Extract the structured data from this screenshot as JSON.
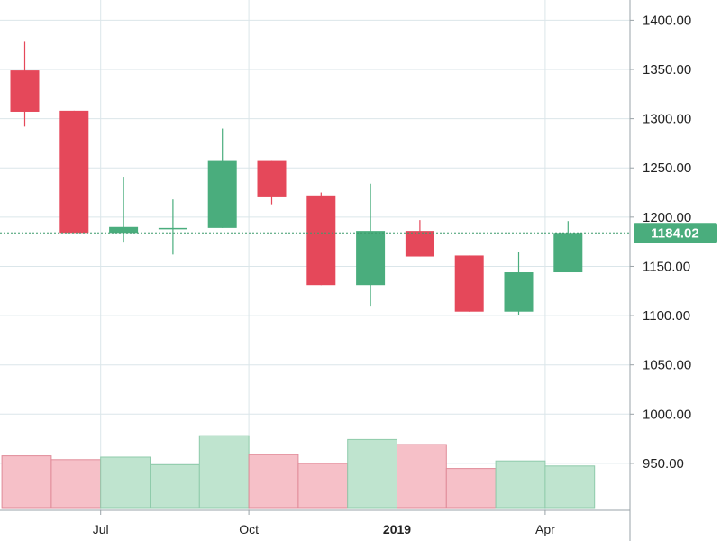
{
  "chart_data": {
    "type": "candlestick",
    "title": "",
    "xlabel": "",
    "ylabel": "",
    "ylim": [
      880,
      1420
    ],
    "grid": true,
    "y_ticks": [
      "950.00",
      "1000.00",
      "1050.00",
      "1100.00",
      "1150.00",
      "1200.00",
      "1250.00",
      "1300.00",
      "1350.00",
      "1400.00"
    ],
    "x_ticks": [
      {
        "label": "Jul",
        "period": "2018-07",
        "bold": false
      },
      {
        "label": "Oct",
        "period": "2018-10",
        "bold": false
      },
      {
        "label": "2019",
        "period": "2019-01",
        "bold": true
      },
      {
        "label": "Apr",
        "period": "2019-04",
        "bold": false
      }
    ],
    "last_price": {
      "value": 1184.02,
      "label": "1184.02"
    },
    "candles": [
      {
        "period": "2018-05",
        "open": 1349,
        "high": 1378,
        "low": 1292,
        "close": 1307,
        "volume": 0.41
      },
      {
        "period": "2018-06",
        "open": 1308,
        "high": 1308,
        "low": 1184,
        "close": 1184,
        "volume": 0.38
      },
      {
        "period": "2018-07",
        "open": 1184,
        "high": 1241,
        "low": 1175,
        "close": 1190,
        "volume": 0.4
      },
      {
        "period": "2018-08",
        "open": 1189,
        "high": 1218,
        "low": 1162,
        "close": 1189,
        "volume": 0.34
      },
      {
        "period": "2018-09",
        "open": 1189,
        "high": 1290,
        "low": 1189,
        "close": 1257,
        "volume": 0.57
      },
      {
        "period": "2018-10",
        "open": 1257,
        "high": 1257,
        "low": 1213,
        "close": 1221,
        "volume": 0.42
      },
      {
        "period": "2018-11",
        "open": 1222,
        "high": 1225,
        "low": 1131,
        "close": 1131,
        "volume": 0.35
      },
      {
        "period": "2018-12",
        "open": 1131,
        "high": 1234,
        "low": 1110,
        "close": 1186,
        "volume": 0.54
      },
      {
        "period": "2019-01",
        "open": 1186,
        "high": 1197,
        "low": 1160,
        "close": 1160,
        "volume": 0.5
      },
      {
        "period": "2019-02",
        "open": 1161,
        "high": 1161,
        "low": 1104,
        "close": 1104,
        "volume": 0.31
      },
      {
        "period": "2019-03",
        "open": 1104,
        "high": 1165,
        "low": 1101,
        "close": 1144,
        "volume": 0.37
      },
      {
        "period": "2019-04",
        "open": 1144,
        "high": 1196,
        "low": 1144,
        "close": 1184,
        "volume": 0.33
      }
    ],
    "colors": {
      "up": "#4aad7d",
      "down": "#e5485a",
      "up_volume": "#bfe4cf",
      "down_volume": "#f6c0c8",
      "grid": "#dbe6ea",
      "axis": "#9aa3a8",
      "last_price_line": "#3d9b6d",
      "last_price_bg": "#4aad7d"
    }
  }
}
